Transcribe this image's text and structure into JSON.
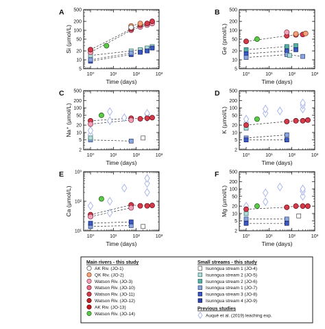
{
  "figure": {
    "legend": {
      "main_title": "Main rivers - this study",
      "small_title": "Small streams - this study",
      "prev_title": "Previous studies",
      "main": [
        {
          "label": "AK Riv. (JO-1)",
          "fill": "#ffffff",
          "stroke": "#444444"
        },
        {
          "label": "QK Riv. (JO-2)",
          "fill": "#f4a07a",
          "stroke": "#7a3a1a"
        },
        {
          "label": "Watson Riv. (JO-3)",
          "fill": "#f2a0b8",
          "stroke": "#7a2a40"
        },
        {
          "label": "Watson Riv. (JO-10)",
          "fill": "#e86a86",
          "stroke": "#6a1a2a"
        },
        {
          "label": "Watson Riv. (JO-11)",
          "fill": "#d43a4a",
          "stroke": "#5a0a14"
        },
        {
          "label": "Watson Riv. (JO-12)",
          "fill": "#c02228",
          "stroke": "#500808"
        },
        {
          "label": "AK Riv. (JO-13)",
          "fill": "#c8141a",
          "stroke": "#4a0000"
        },
        {
          "label": "Watson Riv. (JO-14)",
          "fill": "#5cc84a",
          "stroke": "#1a5a10"
        }
      ],
      "small": [
        {
          "label": "Isunngua stream 1 (JO-4)",
          "fill": "#ffffff",
          "stroke": "#444444"
        },
        {
          "label": "Isunngua stream 2 (JO-5)",
          "fill": "#b6dcd8",
          "stroke": "#2a6a66"
        },
        {
          "label": "Isunngua stream 2 (JO-6)",
          "fill": "#56b0a8",
          "stroke": "#1a5a54"
        },
        {
          "label": "Isunngua stream 1 (JO-7)",
          "fill": "#8aa6dc",
          "stroke": "#2a3a7a"
        },
        {
          "label": "Isunngua stream 3 (JO-8)",
          "fill": "#3a5ac4",
          "stroke": "#101a5a"
        },
        {
          "label": "Isunngua stream 4 (JO-9)",
          "fill": "#2a44aa",
          "stroke": "#0a1050"
        }
      ],
      "prev": [
        {
          "label": "Auqué et al. (2019) leaching exp.",
          "fill": "#ffffff",
          "stroke": "#aab6ea"
        }
      ]
    }
  },
  "chart_data": [
    {
      "type": "scatter",
      "panel": "A",
      "ylabel": "Si (μmol/L)",
      "xlabel": "Time (days)",
      "xscale": "log",
      "yscale": "log",
      "xlim": [
        0.5,
        1000
      ],
      "ylim": [
        5,
        500
      ],
      "xticks": [
        {
          "v": 1,
          "t": "10⁰"
        },
        {
          "v": 10,
          "t": "10¹"
        },
        {
          "v": 100,
          "t": "10²"
        },
        {
          "v": 1000,
          "t": "10³"
        }
      ],
      "yticks": [
        {
          "v": 5,
          "t": "5"
        },
        {
          "v": 10,
          "t": "10"
        },
        {
          "v": 20,
          "t": "20"
        },
        {
          "v": 50,
          "t": "50"
        },
        {
          "v": 100,
          "t": "100"
        },
        {
          "v": 200,
          "t": "200"
        },
        {
          "v": 500,
          "t": "500"
        }
      ],
      "series": [
        {
          "group": "main",
          "idx": 2,
          "x": [
            1,
            60,
            150,
            300,
            500
          ],
          "y": [
            18,
            100,
            130,
            150,
            170
          ]
        },
        {
          "group": "main",
          "idx": 4,
          "x": [
            1,
            60,
            150,
            300,
            500
          ],
          "y": [
            22,
            110,
            150,
            170,
            200
          ]
        },
        {
          "group": "main",
          "idx": 1,
          "x": [
            60,
            150
          ],
          "y": [
            140,
            170
          ]
        },
        {
          "group": "main",
          "idx": 0,
          "x": [
            60
          ],
          "y": [
            125
          ]
        },
        {
          "group": "main",
          "idx": 7,
          "x": [
            5
          ],
          "y": [
            30
          ]
        },
        {
          "group": "small",
          "idx": 1,
          "x": [
            1,
            60,
            150,
            300,
            500
          ],
          "y": [
            14,
            20,
            22,
            25,
            28
          ]
        },
        {
          "group": "small",
          "idx": 4,
          "x": [
            1,
            60,
            150,
            300,
            500
          ],
          "y": [
            9,
            15,
            18,
            20,
            25
          ]
        },
        {
          "group": "small",
          "idx": 3,
          "x": [
            1,
            60
          ],
          "y": [
            10,
            17
          ]
        }
      ]
    },
    {
      "type": "scatter",
      "panel": "B",
      "ylabel": "Ge (pmol/L)",
      "xlabel": "Time (days)",
      "xscale": "log",
      "yscale": "log",
      "xlim": [
        0.5,
        1000
      ],
      "ylim": [
        5,
        500
      ],
      "xticks": [
        {
          "v": 1,
          "t": "10⁰"
        },
        {
          "v": 10,
          "t": "10¹"
        },
        {
          "v": 100,
          "t": "10²"
        },
        {
          "v": 1000,
          "t": "10³"
        }
      ],
      "yticks": [
        {
          "v": 5,
          "t": "5"
        },
        {
          "v": 10,
          "t": "10"
        },
        {
          "v": 20,
          "t": "20"
        },
        {
          "v": 50,
          "t": "50"
        },
        {
          "v": 100,
          "t": "100"
        },
        {
          "v": 200,
          "t": "200"
        },
        {
          "v": 500,
          "t": "500"
        }
      ],
      "series": [
        {
          "group": "main",
          "idx": 4,
          "x": [
            1,
            60,
            150,
            300
          ],
          "y": [
            42,
            65,
            70,
            72
          ]
        },
        {
          "group": "main",
          "idx": 1,
          "x": [
            150,
            400
          ],
          "y": [
            75,
            78
          ]
        },
        {
          "group": "main",
          "idx": 2,
          "x": [
            60
          ],
          "y": [
            85
          ]
        },
        {
          "group": "main",
          "idx": 7,
          "x": [
            3
          ],
          "y": [
            50
          ]
        },
        {
          "group": "small",
          "idx": 2,
          "x": [
            1,
            60,
            150
          ],
          "y": [
            22,
            28,
            30
          ]
        },
        {
          "group": "small",
          "idx": 4,
          "x": [
            1,
            60,
            150
          ],
          "y": [
            16,
            20,
            22
          ]
        },
        {
          "group": "small",
          "idx": 3,
          "x": [
            1,
            60,
            300
          ],
          "y": [
            12,
            15,
            13
          ]
        },
        {
          "group": "small",
          "idx": 1,
          "x": [
            80
          ],
          "y": [
            14
          ]
        }
      ]
    },
    {
      "type": "scatter",
      "panel": "C",
      "ylabel": "Na⁺ (μmol/L)",
      "xlabel": "Time (days)",
      "xscale": "log",
      "yscale": "log",
      "xlim": [
        0.5,
        1000
      ],
      "ylim": [
        2,
        500
      ],
      "xticks": [
        {
          "v": 1,
          "t": "10⁰"
        },
        {
          "v": 10,
          "t": "10¹"
        },
        {
          "v": 100,
          "t": "10²"
        },
        {
          "v": 1000,
          "t": "10³"
        }
      ],
      "yticks": [
        {
          "v": 2,
          "t": "2"
        },
        {
          "v": 5,
          "t": "5"
        },
        {
          "v": 10,
          "t": "10"
        },
        {
          "v": 20,
          "t": "20"
        },
        {
          "v": 50,
          "t": "50"
        },
        {
          "v": 100,
          "t": "100"
        },
        {
          "v": 200,
          "t": "200"
        },
        {
          "v": 500,
          "t": "500"
        }
      ],
      "series": [
        {
          "group": "main",
          "idx": 4,
          "x": [
            1,
            60,
            150,
            300,
            500
          ],
          "y": [
            30,
            38,
            36,
            38,
            40
          ]
        },
        {
          "group": "main",
          "idx": 2,
          "x": [
            1,
            60
          ],
          "y": [
            22,
            32
          ]
        },
        {
          "group": "main",
          "idx": 7,
          "x": [
            3
          ],
          "y": [
            50
          ]
        },
        {
          "group": "small",
          "idx": 0,
          "x": [
            200
          ],
          "y": [
            6
          ]
        },
        {
          "group": "small",
          "idx": 3,
          "x": [
            1,
            60
          ],
          "y": [
            5,
            4.5
          ]
        },
        {
          "group": "small",
          "idx": 1,
          "x": [
            1
          ],
          "y": [
            6
          ]
        },
        {
          "group": "prev",
          "idx": 0,
          "x": [
            1,
            1,
            7,
            7,
            30,
            300,
            300,
            300
          ],
          "y": [
            8,
            12,
            30,
            70,
            40,
            40,
            55,
            60
          ]
        }
      ]
    },
    {
      "type": "scatter",
      "panel": "D",
      "ylabel": "K (μmol/L)",
      "xlabel": "Time (days)",
      "xscale": "log",
      "yscale": "log",
      "xlim": [
        0.5,
        1000
      ],
      "ylim": [
        2,
        500
      ],
      "xticks": [
        {
          "v": 1,
          "t": "10⁰"
        },
        {
          "v": 10,
          "t": "10¹"
        },
        {
          "v": 100,
          "t": "10²"
        },
        {
          "v": 1000,
          "t": "10³"
        }
      ],
      "yticks": [
        {
          "v": 2,
          "t": "2"
        },
        {
          "v": 5,
          "t": "5"
        },
        {
          "v": 10,
          "t": "10"
        },
        {
          "v": 20,
          "t": "20"
        },
        {
          "v": 50,
          "t": "50"
        },
        {
          "v": 100,
          "t": "100"
        },
        {
          "v": 200,
          "t": "200"
        },
        {
          "v": 500,
          "t": "500"
        }
      ],
      "series": [
        {
          "group": "main",
          "idx": 4,
          "x": [
            1,
            60,
            150,
            300,
            500
          ],
          "y": [
            20,
            28,
            30,
            30,
            32
          ]
        },
        {
          "group": "main",
          "idx": 7,
          "x": [
            3
          ],
          "y": [
            35
          ]
        },
        {
          "group": "small",
          "idx": 1,
          "x": [
            1
          ],
          "y": [
            15
          ]
        },
        {
          "group": "small",
          "idx": 3,
          "x": [
            1,
            60
          ],
          "y": [
            6,
            8
          ]
        },
        {
          "group": "small",
          "idx": 4,
          "x": [
            1,
            60
          ],
          "y": [
            5,
            5
          ]
        },
        {
          "group": "prev",
          "idx": 0,
          "x": [
            1,
            1,
            7,
            7,
            30,
            300,
            300,
            300
          ],
          "y": [
            25,
            35,
            60,
            90,
            75,
            90,
            130,
            160
          ]
        }
      ]
    },
    {
      "type": "scatter",
      "panel": "E",
      "ylabel": "Ca (μmol/L)",
      "xlabel": "Time (days)",
      "xscale": "log",
      "yscale": "log",
      "xlim": [
        0.5,
        1000
      ],
      "ylim": [
        10,
        1000
      ],
      "xticks": [
        {
          "v": 1,
          "t": "10⁰"
        },
        {
          "v": 10,
          "t": "10¹"
        },
        {
          "v": 100,
          "t": "10²"
        },
        {
          "v": 1000,
          "t": "10³"
        }
      ],
      "yticks": [
        {
          "v": 10,
          "t": "10¹"
        },
        {
          "v": 100,
          "t": "10²"
        },
        {
          "v": 1000,
          "t": "10³"
        }
      ],
      "series": [
        {
          "group": "main",
          "idx": 4,
          "x": [
            1,
            60,
            150,
            300,
            500
          ],
          "y": [
            35,
            75,
            70,
            70,
            72
          ]
        },
        {
          "group": "main",
          "idx": 2,
          "x": [
            1,
            60
          ],
          "y": [
            30,
            60
          ]
        },
        {
          "group": "main",
          "idx": 7,
          "x": [
            3
          ],
          "y": [
            120
          ]
        },
        {
          "group": "small",
          "idx": 0,
          "x": [
            200
          ],
          "y": [
            14
          ]
        },
        {
          "group": "small",
          "idx": 3,
          "x": [
            1,
            60
          ],
          "y": [
            14,
            15
          ]
        },
        {
          "group": "small",
          "idx": 4,
          "x": [
            1,
            60
          ],
          "y": [
            18,
            20
          ]
        },
        {
          "group": "prev",
          "idx": 0,
          "x": [
            1,
            7,
            7,
            30,
            300,
            300,
            300
          ],
          "y": [
            70,
            40,
            100,
            280,
            200,
            400,
            600
          ]
        }
      ]
    },
    {
      "type": "scatter",
      "panel": "F",
      "ylabel": "Mg (μmol/L)",
      "xlabel": "Time (days)",
      "xscale": "log",
      "yscale": "log",
      "xlim": [
        0.5,
        1000
      ],
      "ylim": [
        2,
        500
      ],
      "xticks": [
        {
          "v": 1,
          "t": "10⁰"
        },
        {
          "v": 10,
          "t": "10¹"
        },
        {
          "v": 100,
          "t": "10²"
        },
        {
          "v": 1000,
          "t": "10³"
        }
      ],
      "yticks": [
        {
          "v": 2,
          "t": "2"
        },
        {
          "v": 5,
          "t": "5"
        },
        {
          "v": 10,
          "t": "10"
        },
        {
          "v": 20,
          "t": "20"
        },
        {
          "v": 50,
          "t": "50"
        },
        {
          "v": 100,
          "t": "100"
        },
        {
          "v": 200,
          "t": "200"
        },
        {
          "v": 500,
          "t": "500"
        }
      ],
      "series": [
        {
          "group": "main",
          "idx": 4,
          "x": [
            1,
            60,
            150,
            300,
            500
          ],
          "y": [
            15,
            18,
            20,
            20,
            20
          ]
        },
        {
          "group": "main",
          "idx": 7,
          "x": [
            3
          ],
          "y": [
            20
          ]
        },
        {
          "group": "small",
          "idx": 0,
          "x": [
            200
          ],
          "y": [
            8
          ]
        },
        {
          "group": "small",
          "idx": 1,
          "x": [
            1
          ],
          "y": [
            10
          ]
        },
        {
          "group": "small",
          "idx": 3,
          "x": [
            1,
            60
          ],
          "y": [
            6,
            6
          ]
        },
        {
          "group": "small",
          "idx": 4,
          "x": [
            1,
            60
          ],
          "y": [
            4,
            4
          ]
        },
        {
          "group": "prev",
          "idx": 0,
          "x": [
            1,
            7,
            7,
            30,
            300,
            300,
            300
          ],
          "y": [
            20,
            30,
            70,
            120,
            50,
            80,
            100
          ]
        }
      ]
    }
  ]
}
